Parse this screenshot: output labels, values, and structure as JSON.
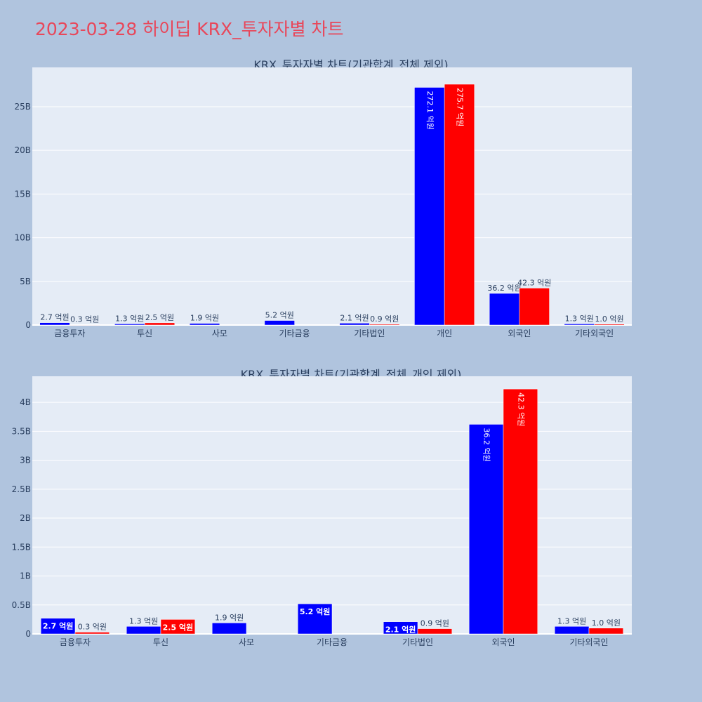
{
  "title": "2023-03-28 하이딥 KRX_투자자별 차트",
  "colors": {
    "background": "#b0c4de",
    "plot_bg": "#e5ecf6",
    "buy": "#0000ff",
    "sell": "#ff0000",
    "title": "#e8475a"
  },
  "chart_data": [
    {
      "type": "bar",
      "title": "KRX_투자자별 차트(기관합계_전체 제외)",
      "categories": [
        "금융투자",
        "투신",
        "사모",
        "기타금융",
        "기타법인",
        "개인",
        "외국인",
        "기타외국인"
      ],
      "ylim": [
        0,
        29500000000
      ],
      "yticks": [
        0,
        5000000000,
        10000000000,
        15000000000,
        20000000000,
        25000000000
      ],
      "ytick_labels": [
        "0",
        "5B",
        "10B",
        "15B",
        "20B",
        "25B"
      ],
      "series": [
        {
          "color": "#0000ff",
          "values": [
            270000000,
            130000000,
            190000000,
            520000000,
            210000000,
            27210000000,
            3620000000,
            130000000
          ],
          "labels": [
            "2.7 억원",
            "1.3 억원",
            "1.9 억원",
            "5.2 억원",
            "2.1 억원",
            "272.1 억원",
            "36.2 억원",
            "1.3 억원"
          ]
        },
        {
          "color": "#ff0000",
          "values": [
            30000000,
            250000000,
            null,
            null,
            90000000,
            27570000000,
            4230000000,
            100000000
          ],
          "labels": [
            "0.3 억원",
            "2.5 억원",
            "",
            "",
            "0.9 억원",
            "275.7 억원",
            "42.3 억원",
            "1.0 억원"
          ]
        }
      ]
    },
    {
      "type": "bar",
      "title": "KRX_투자자별 차트(기관합계_전체_개인 제외)",
      "categories": [
        "금융투자",
        "투신",
        "사모",
        "기타금융",
        "기타법인",
        "외국인",
        "기타외국인"
      ],
      "ylim": [
        0,
        4450000000
      ],
      "yticks": [
        0,
        500000000,
        1000000000,
        1500000000,
        2000000000,
        2500000000,
        3000000000,
        3500000000,
        4000000000
      ],
      "ytick_labels": [
        "0",
        "0.5B",
        "1B",
        "1.5B",
        "2B",
        "2.5B",
        "3B",
        "3.5B",
        "4B"
      ],
      "series": [
        {
          "color": "#0000ff",
          "values": [
            270000000,
            130000000,
            190000000,
            520000000,
            210000000,
            3620000000,
            130000000
          ],
          "labels": [
            "2.7 억원",
            "1.3 억원",
            "1.9 억원",
            "5.2 억원",
            "2.1 억원",
            "36.2 억원",
            "1.3 억원"
          ]
        },
        {
          "color": "#ff0000",
          "values": [
            30000000,
            250000000,
            null,
            null,
            90000000,
            4230000000,
            100000000
          ],
          "labels": [
            "0.3 억원",
            "2.5 억원",
            "",
            "",
            "0.9 억원",
            "42.3 억원",
            "1.0 억원"
          ]
        }
      ]
    }
  ]
}
